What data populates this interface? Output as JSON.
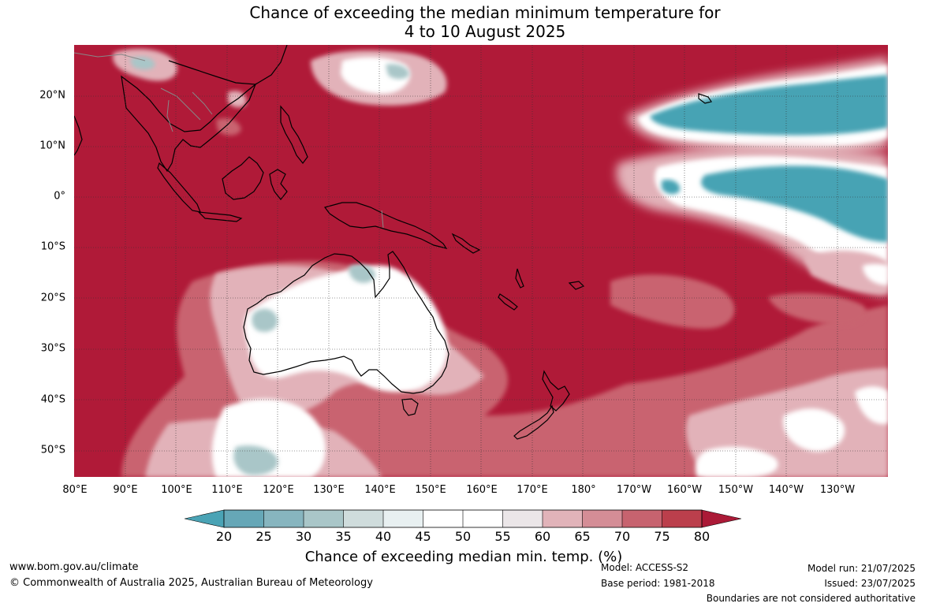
{
  "title": {
    "line1": "Chance of exceeding the median minimum temperature for",
    "line2": "4 to 10 August 2025"
  },
  "lat_labels": [
    "20°N",
    "10°N",
    "0°",
    "10°S",
    "20°S",
    "30°S",
    "40°S",
    "50°S"
  ],
  "lon_labels": [
    "80°E",
    "90°E",
    "100°E",
    "110°E",
    "120°E",
    "130°E",
    "140°E",
    "150°E",
    "160°E",
    "170°E",
    "180°",
    "170°W",
    "160°W",
    "150°W",
    "140°W",
    "130°W"
  ],
  "colorbar": {
    "ticks": [
      "20",
      "25",
      "30",
      "35",
      "40",
      "45",
      "50",
      "55",
      "60",
      "65",
      "70",
      "75",
      "80"
    ],
    "colors": [
      "#4aa3b5",
      "#66a7b7",
      "#87b5bf",
      "#a9c6c8",
      "#cfdcdc",
      "#e8f0f1",
      "#ffffff",
      "#ffffff",
      "#ebe6e8",
      "#e1b3b9",
      "#d48d96",
      "#c7636f",
      "#bb3f4c",
      "#ab1a37"
    ],
    "title": "Chance of exceeding median min. temp. (%)"
  },
  "map_colors": {
    "high": "#b01a38",
    "mid_high": "#c9636f",
    "mid": "#e2b2b9",
    "neutral": "#ffffff",
    "low": "#a9c6c8",
    "very_low": "#46a3b4",
    "land_outline": "#000000",
    "border_outline": "#888888"
  },
  "footer": {
    "website": "www.bom.gov.au/climate",
    "copyright": "© Commonwealth of Australia 2025, Australian Bureau of Meteorology",
    "model": "Model: ACCESS-S2",
    "base_period": "Base period: 1981-2018",
    "model_run": "Model run: 21/07/2025",
    "issued": "Issued: 23/07/2025",
    "disclaimer": "Boundaries are not considered authoritative"
  }
}
